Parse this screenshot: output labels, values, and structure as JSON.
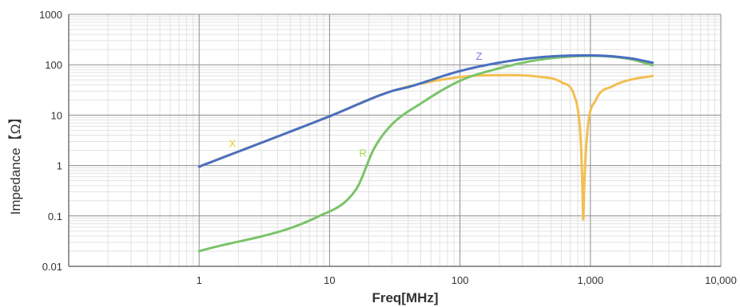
{
  "chart_data": {
    "type": "line",
    "xlabel": "Freq[MHz]",
    "ylabel": "Impedance【Ω】",
    "x_scale": "log",
    "y_scale": "log",
    "xlim": [
      0.1,
      10000
    ],
    "ylim": [
      0.01,
      1000
    ],
    "x_tick_values": [
      1,
      10,
      100,
      1000,
      10000
    ],
    "x_tick_labels": [
      "1",
      "10",
      "100",
      "1,000",
      "10,000"
    ],
    "y_tick_values": [
      0.01,
      0.1,
      1,
      10,
      100,
      1000
    ],
    "y_tick_labels": [
      "0.01",
      "0.1",
      "1",
      "10",
      "100",
      "1000"
    ],
    "grid": true,
    "legend": "none",
    "series": [
      {
        "name": "X",
        "color": "#f2bf52",
        "x": [
          1,
          10,
          30,
          100,
          200,
          400,
          600,
          750,
          820,
          850,
          870,
          880,
          900,
          950,
          1100,
          1500,
          2000,
          3000
        ],
        "y": [
          0.95,
          9.5,
          30,
          57,
          62,
          58,
          45,
          25,
          8,
          2,
          0.3,
          0.085,
          0.5,
          5,
          20,
          38,
          50,
          60
        ]
      },
      {
        "name": "R",
        "color": "#7cc36a",
        "x": [
          1,
          8,
          16,
          22,
          30,
          50,
          100,
          200,
          400,
          700,
          1000,
          2000,
          3000
        ],
        "y": [
          0.02,
          0.095,
          0.34,
          2.2,
          6.5,
          17,
          48,
          85,
          125,
          145,
          150,
          130,
          98
        ]
      },
      {
        "name": "Z",
        "color": "#4a6fc0",
        "x": [
          1,
          10,
          30,
          40,
          100,
          200,
          400,
          700,
          1000,
          2000,
          3000
        ],
        "y": [
          0.95,
          9.5,
          30,
          36,
          75,
          110,
          140,
          152,
          153,
          135,
          110
        ]
      }
    ],
    "annotations": [
      {
        "text": "X",
        "x": 1.8,
        "y": 2.3,
        "color": "#e2d02a"
      },
      {
        "text": "R",
        "x": 18,
        "y": 1.5,
        "color": "#a8d84e"
      },
      {
        "text": "Z",
        "x": 140,
        "y": 125,
        "color": "#7b7bea"
      }
    ]
  }
}
